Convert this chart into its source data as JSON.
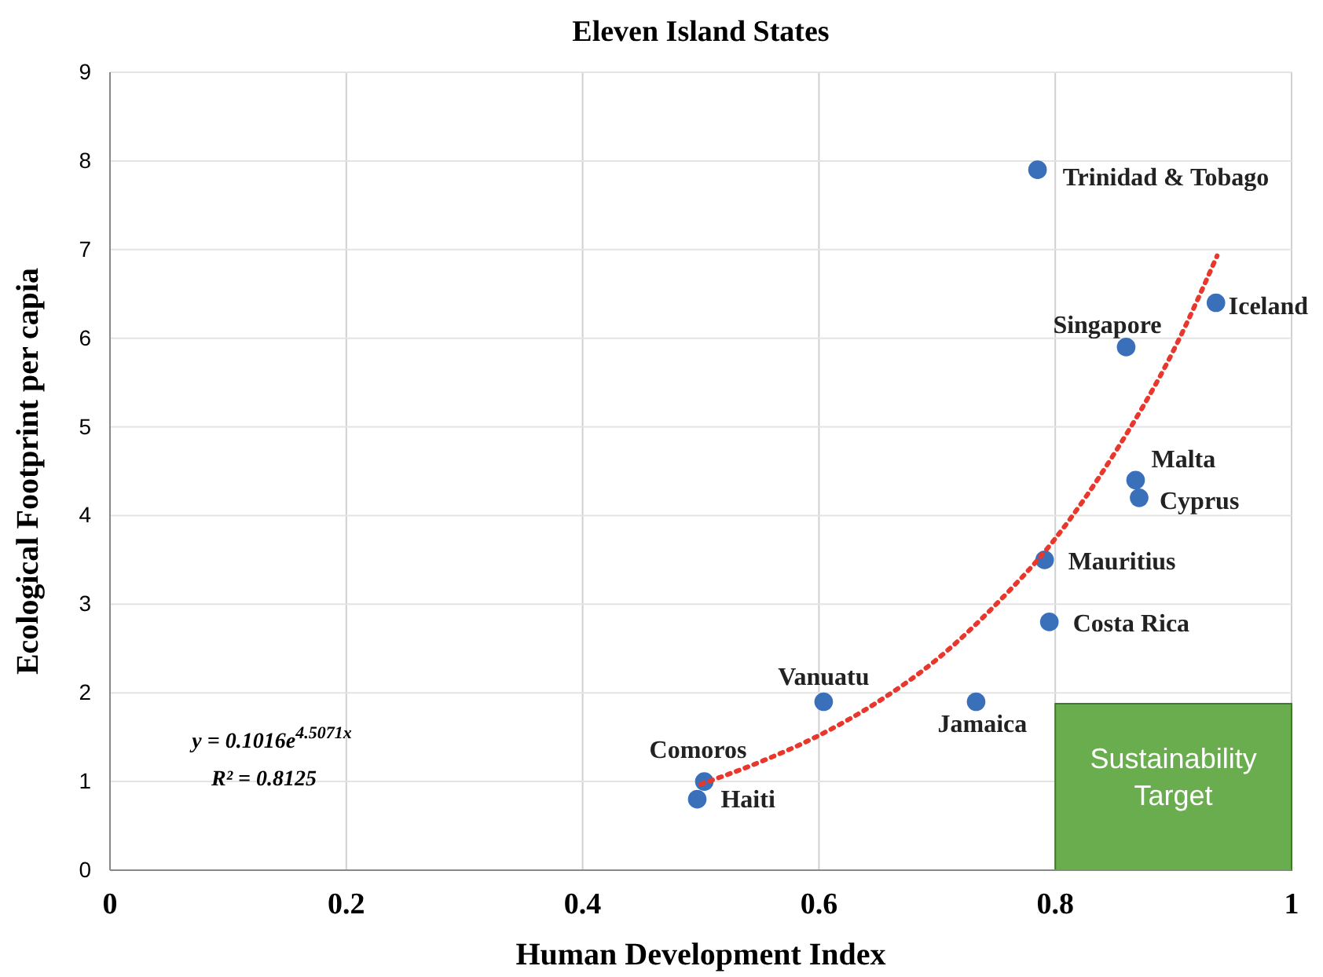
{
  "chart_data": {
    "type": "scatter",
    "title": "Eleven Island States",
    "xlabel": "Human Development Index",
    "ylabel": "Ecological Footprint per capia",
    "xlim": [
      0,
      1
    ],
    "ylim": [
      0,
      9
    ],
    "xticks": [
      0,
      0.2,
      0.4,
      0.6,
      0.8,
      1
    ],
    "yticks": [
      0,
      1,
      2,
      3,
      4,
      5,
      6,
      7,
      8,
      9
    ],
    "grid": true,
    "series": [
      {
        "type": "scatter",
        "color": "#3a6fba",
        "marker": "circle",
        "x": [
          0.785,
          0.936,
          0.86,
          0.868,
          0.871,
          0.791,
          0.795,
          0.733,
          0.604,
          0.503,
          0.497
        ],
        "values": [
          7.9,
          6.4,
          5.9,
          4.4,
          4.2,
          3.5,
          2.8,
          1.9,
          1.9,
          1.0,
          0.8
        ]
      },
      {
        "type": "line",
        "color": "#e8372c",
        "line_style": "dotted",
        "marker": "none",
        "x": [
          0.5,
          0.55,
          0.6,
          0.65,
          0.7,
          0.75,
          0.8,
          0.85,
          0.9,
          0.937
        ],
        "values": [
          0.97,
          1.22,
          1.52,
          1.9,
          2.38,
          3.0,
          3.74,
          4.7,
          5.86,
          6.93
        ]
      }
    ],
    "bands": [
      {
        "axis": "x",
        "from": 0.8,
        "to": 1,
        "label": "Sustainability Target",
        "color": "#6aad4e"
      }
    ],
    "annotations": [
      {
        "text": "Trinidad & Tobago",
        "x": 0.785,
        "y": 7.9
      },
      {
        "text": "Iceland",
        "x": 0.936,
        "y": 6.4
      },
      {
        "text": "Singapore",
        "x": 0.86,
        "y": 5.9
      },
      {
        "text": "Malta",
        "x": 0.868,
        "y": 4.4
      },
      {
        "text": "Cyprus",
        "x": 0.871,
        "y": 4.2
      },
      {
        "text": "Mauritius",
        "x": 0.791,
        "y": 3.5
      },
      {
        "text": "Costa Rica",
        "x": 0.795,
        "y": 2.8
      },
      {
        "text": "Jamaica",
        "x": 0.733,
        "y": 1.9
      },
      {
        "text": "Vanuatu",
        "x": 0.604,
        "y": 1.9
      },
      {
        "text": "Comoros",
        "x": 0.503,
        "y": 1.0
      },
      {
        "text": "Haiti",
        "x": 0.497,
        "y": 0.8
      },
      "y = 0.1016e$^{4.5071x}$",
      "R² = 0.8125"
    ]
  }
}
